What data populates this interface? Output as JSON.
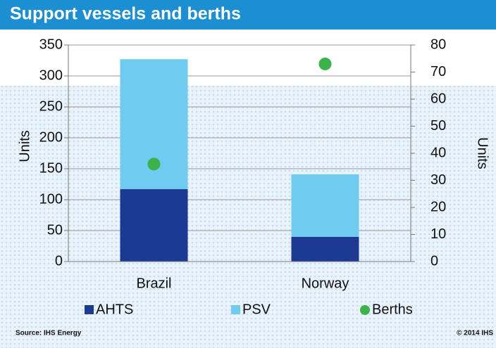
{
  "chart_data": {
    "type": "bar",
    "stacked": true,
    "title": "Support vessels and berths",
    "categories": [
      "Brazil",
      "Norway"
    ],
    "series": [
      {
        "name": "AHTS",
        "color": "#1c3a94",
        "values": [
          117,
          40
        ]
      },
      {
        "name": "PSV",
        "color": "#6fcbf0",
        "values": [
          210,
          101
        ]
      },
      {
        "name": "Berths",
        "color": "#3cb34a",
        "type": "scatter",
        "axis": "y2",
        "values": [
          36,
          73
        ]
      }
    ],
    "ylabel": "Units",
    "y2label": "Units",
    "ylim": [
      0,
      350
    ],
    "yticks": [
      0,
      50,
      100,
      150,
      200,
      250,
      300,
      350
    ],
    "y2lim": [
      0,
      80
    ],
    "y2ticks": [
      0,
      10,
      20,
      30,
      40,
      50,
      60,
      70,
      80
    ],
    "grid": true,
    "legend": "bottom",
    "source": "Source: IHS Energy",
    "copyright": "© 2014 IHS"
  }
}
